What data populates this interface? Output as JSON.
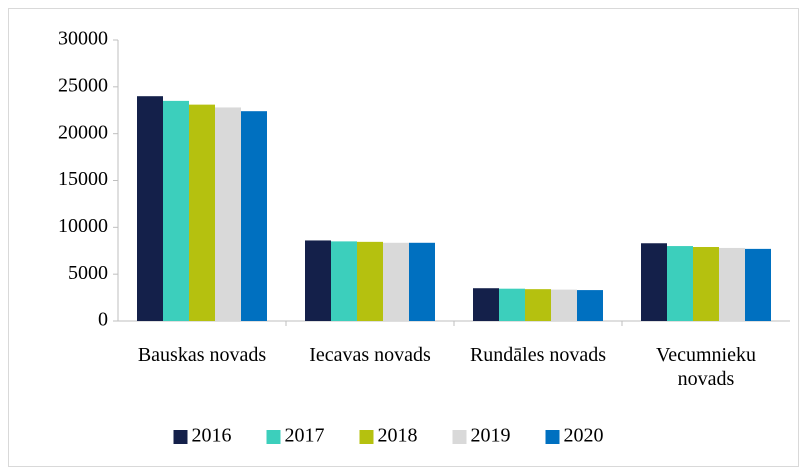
{
  "chart_data": {
    "type": "bar",
    "categories": [
      "Bauskas novads",
      "Iecavas novads",
      "Rundāles novads",
      "Vecumnieku novads"
    ],
    "series": [
      {
        "name": "2016",
        "color": "#14204a",
        "values": [
          24000,
          8600,
          3500,
          8300
        ]
      },
      {
        "name": "2017",
        "color": "#3ccfbc",
        "values": [
          23500,
          8500,
          3450,
          8000
        ]
      },
      {
        "name": "2018",
        "color": "#b5c10f",
        "values": [
          23100,
          8450,
          3400,
          7900
        ]
      },
      {
        "name": "2019",
        "color": "#d9d9d9",
        "values": [
          22800,
          8350,
          3350,
          7800
        ]
      },
      {
        "name": "2020",
        "color": "#0070c0",
        "values": [
          22400,
          8350,
          3300,
          7700
        ]
      }
    ],
    "ylim": [
      0,
      30000
    ],
    "yticks": [
      0,
      5000,
      10000,
      15000,
      20000,
      25000,
      30000
    ],
    "grid": false,
    "legend": "bottom"
  }
}
